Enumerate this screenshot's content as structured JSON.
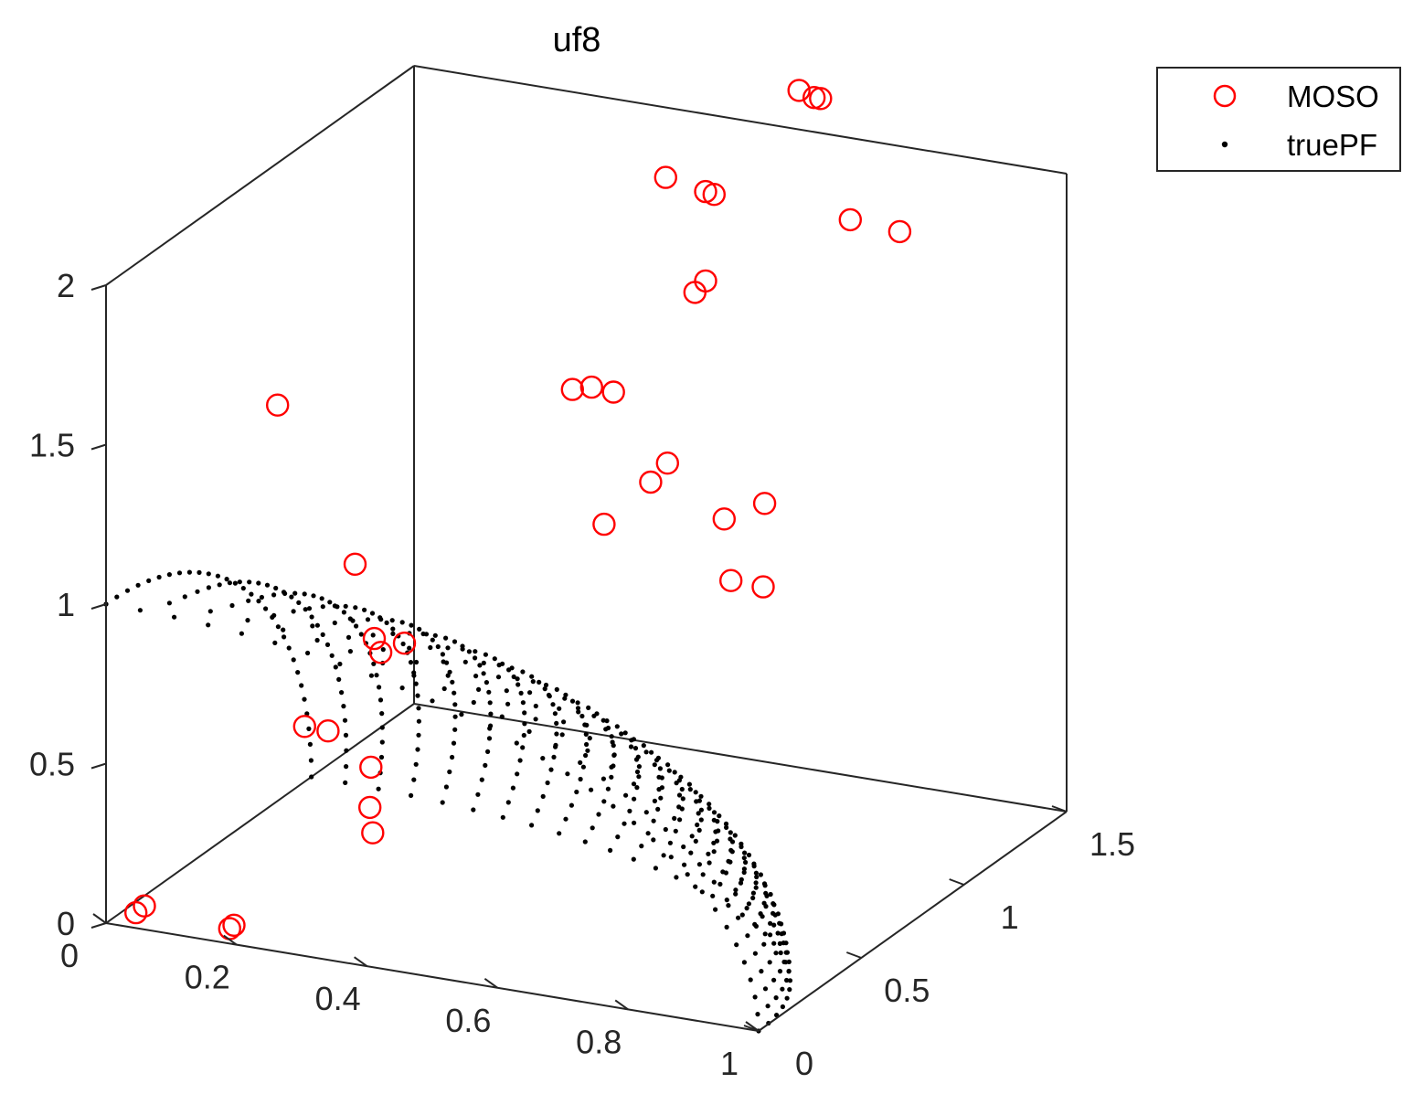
{
  "chart_data": {
    "type": "scatter3d",
    "title": "uf8",
    "xlabel": "",
    "ylabel": "",
    "zlabel": "",
    "xlim": [
      0,
      1
    ],
    "ylim": [
      0,
      1.5
    ],
    "zlim": [
      0,
      2
    ],
    "xticks": [
      "0",
      "0.2",
      "0.4",
      "0.6",
      "0.8",
      "1"
    ],
    "yticks": [
      "0",
      "0.5",
      "1",
      "1.5"
    ],
    "zticks": [
      "0",
      "0.5",
      "1",
      "1.5",
      "2"
    ],
    "grid": false,
    "box": true,
    "legend_position": "top-right",
    "series": [
      {
        "name": "MOSO",
        "marker": "circle-open",
        "color": "#ff0000",
        "points": [
          [
            0.03,
            0.05,
            0.02
          ],
          [
            0.04,
            0.06,
            0.04
          ],
          [
            0.18,
            0.03,
            0.03
          ],
          [
            0.185,
            0.035,
            0.04
          ],
          [
            0.2,
            0.2,
            1.6
          ],
          [
            0.21,
            0.3,
            0.55
          ],
          [
            0.23,
            0.35,
            0.52
          ],
          [
            0.24,
            0.45,
            1.0
          ],
          [
            0.26,
            0.48,
            0.76
          ],
          [
            0.27,
            0.48,
            0.72
          ],
          [
            0.28,
            0.4,
            0.4
          ],
          [
            0.3,
            0.5,
            0.75
          ],
          [
            0.33,
            0.25,
            0.28
          ],
          [
            0.31,
            0.3,
            0.33
          ],
          [
            0.52,
            1.0,
            1.1
          ],
          [
            0.53,
            1.05,
            1.14
          ],
          [
            0.48,
            0.9,
            1.0
          ],
          [
            0.62,
            1.04,
            1.0
          ],
          [
            0.66,
            1.11,
            1.03
          ],
          [
            0.58,
            1.2,
            0.72
          ],
          [
            0.62,
            1.23,
            0.7
          ],
          [
            0.4,
            1.0,
            1.35
          ],
          [
            0.42,
            1.03,
            1.35
          ],
          [
            0.55,
            1.12,
            1.65
          ],
          [
            0.56,
            1.14,
            1.68
          ],
          [
            0.56,
            1.14,
            1.96
          ],
          [
            0.57,
            1.15,
            1.95
          ],
          [
            0.7,
            1.15,
            2.32
          ],
          [
            0.72,
            1.16,
            2.3
          ],
          [
            0.73,
            1.16,
            2.3
          ],
          [
            0.4,
            1.2,
            1.25
          ],
          [
            0.48,
            1.2,
            1.95
          ],
          [
            0.7,
            1.4,
            1.8
          ],
          [
            0.76,
            1.45,
            1.76
          ]
        ]
      },
      {
        "name": "truePF",
        "marker": "dot",
        "color": "#000000",
        "surface": "f1^2 + f2^2 + f3^2 = 1",
        "points": []
      }
    ]
  }
}
